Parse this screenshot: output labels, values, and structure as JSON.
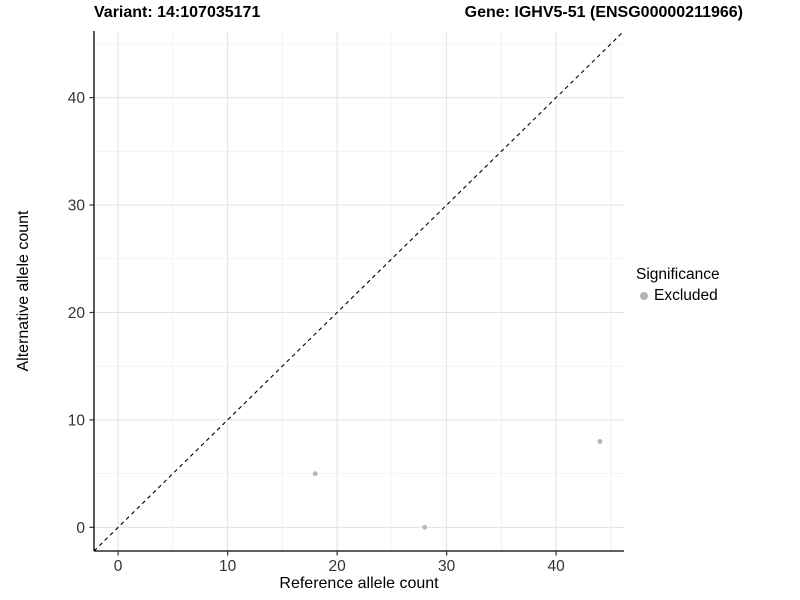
{
  "header": {
    "variant_title": "Variant: 14:107035171",
    "gene_title": "Gene: IGHV5-51 (ENSG00000211966)"
  },
  "chart_data": {
    "type": "scatter",
    "xlabel": "Reference allele count",
    "ylabel": "Alternative allele count",
    "xlim": [
      -2.2,
      46.2
    ],
    "ylim": [
      -2.2,
      46.2
    ],
    "x_ticks": [
      0,
      10,
      20,
      30,
      40
    ],
    "y_ticks": [
      0,
      10,
      20,
      30,
      40
    ],
    "x_minor_ticks": [
      5,
      15,
      25,
      35,
      45
    ],
    "y_minor_ticks": [
      5,
      15,
      25,
      35,
      45
    ],
    "grid": true,
    "identity_line": {
      "style": "dashed",
      "slope": 1,
      "intercept": 0
    },
    "series": [
      {
        "name": "Excluded",
        "color": "#b5b5b5",
        "points": [
          [
            18,
            5
          ],
          [
            28,
            0
          ],
          [
            44,
            8
          ]
        ]
      }
    ],
    "legend_position": "right"
  },
  "legend": {
    "title": "Significance",
    "items": [
      {
        "label": "Excluded",
        "color": "#b5b5b5"
      }
    ]
  },
  "colors": {
    "background": "#ffffff",
    "grid_major": "#e3e3e3",
    "grid_minor": "#f0f0f0",
    "axis_line": "#000000",
    "tick_mark": "#333333",
    "tick_label": "#333333",
    "point": "#b5b5b5",
    "identity_line": "#000000"
  }
}
